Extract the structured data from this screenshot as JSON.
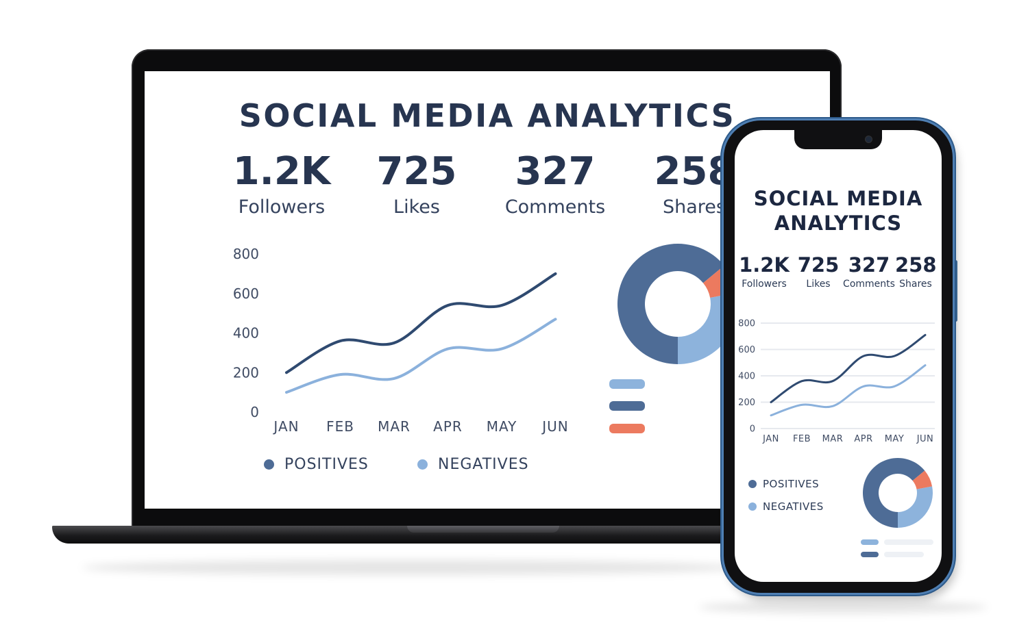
{
  "colors": {
    "title": "#273550",
    "positives": "#2f4a70",
    "negatives": "#8bb1dc",
    "donut_dark": "#4e6c96",
    "donut_light": "#8db3dc",
    "donut_accent": "#ec7a5f",
    "phone_frame": "#4f7fb3"
  },
  "laptop": {
    "title": "SOCIAL MEDIA ANALYTICS",
    "stats": [
      {
        "value": "1.2K",
        "label": "Followers"
      },
      {
        "value": "725",
        "label": "Likes"
      },
      {
        "value": "327",
        "label": "Comments"
      },
      {
        "value": "258",
        "label": "Shares"
      }
    ],
    "legend": {
      "positives": "POSITIVES",
      "negatives": "NEGATIVES"
    }
  },
  "phone": {
    "title_line1": "SOCIAL MEDIA",
    "title_line2": "ANALYTICS",
    "stats": [
      {
        "value": "1.2K",
        "label": "Followers"
      },
      {
        "value": "725",
        "label": "Likes"
      },
      {
        "value": "327",
        "label": "Comments"
      },
      {
        "value": "258",
        "label": "Shares"
      }
    ],
    "legend": {
      "positives": "POSITIVES",
      "negatives": "NEGATIVES"
    }
  },
  "chart_data": [
    {
      "type": "line",
      "x": [
        "JAN",
        "FEB",
        "MAR",
        "APR",
        "MAY",
        "JUN"
      ],
      "ylim": [
        0,
        800
      ],
      "yticks": [
        "0",
        "200",
        "400",
        "600",
        "800"
      ],
      "grid": false,
      "legend": "bottom",
      "series": [
        {
          "name": "POSITIVES",
          "values": [
            200,
            360,
            350,
            540,
            540,
            700
          ]
        },
        {
          "name": "NEGATIVES",
          "values": [
            100,
            190,
            170,
            320,
            320,
            470
          ]
        }
      ]
    },
    {
      "type": "pie",
      "values": [
        64,
        8,
        28
      ],
      "colors": [
        "#4e6c96",
        "#ec7a5f",
        "#8db3dc"
      ]
    },
    {
      "type": "line",
      "x": [
        "JAN",
        "FEB",
        "MAR",
        "APR",
        "MAY",
        "JUN"
      ],
      "ylim": [
        0,
        800
      ],
      "yticks": [
        "0",
        "200",
        "400",
        "600",
        "800"
      ],
      "grid": true,
      "legend": "bottom-left",
      "series": [
        {
          "name": "POSITIVES",
          "values": [
            200,
            360,
            360,
            550,
            550,
            710
          ]
        },
        {
          "name": "NEGATIVES",
          "values": [
            100,
            180,
            170,
            320,
            320,
            480
          ]
        }
      ]
    },
    {
      "type": "pie",
      "values": [
        64,
        8,
        28
      ],
      "colors": [
        "#4e6c96",
        "#ec7a5f",
        "#8db3dc"
      ]
    }
  ]
}
